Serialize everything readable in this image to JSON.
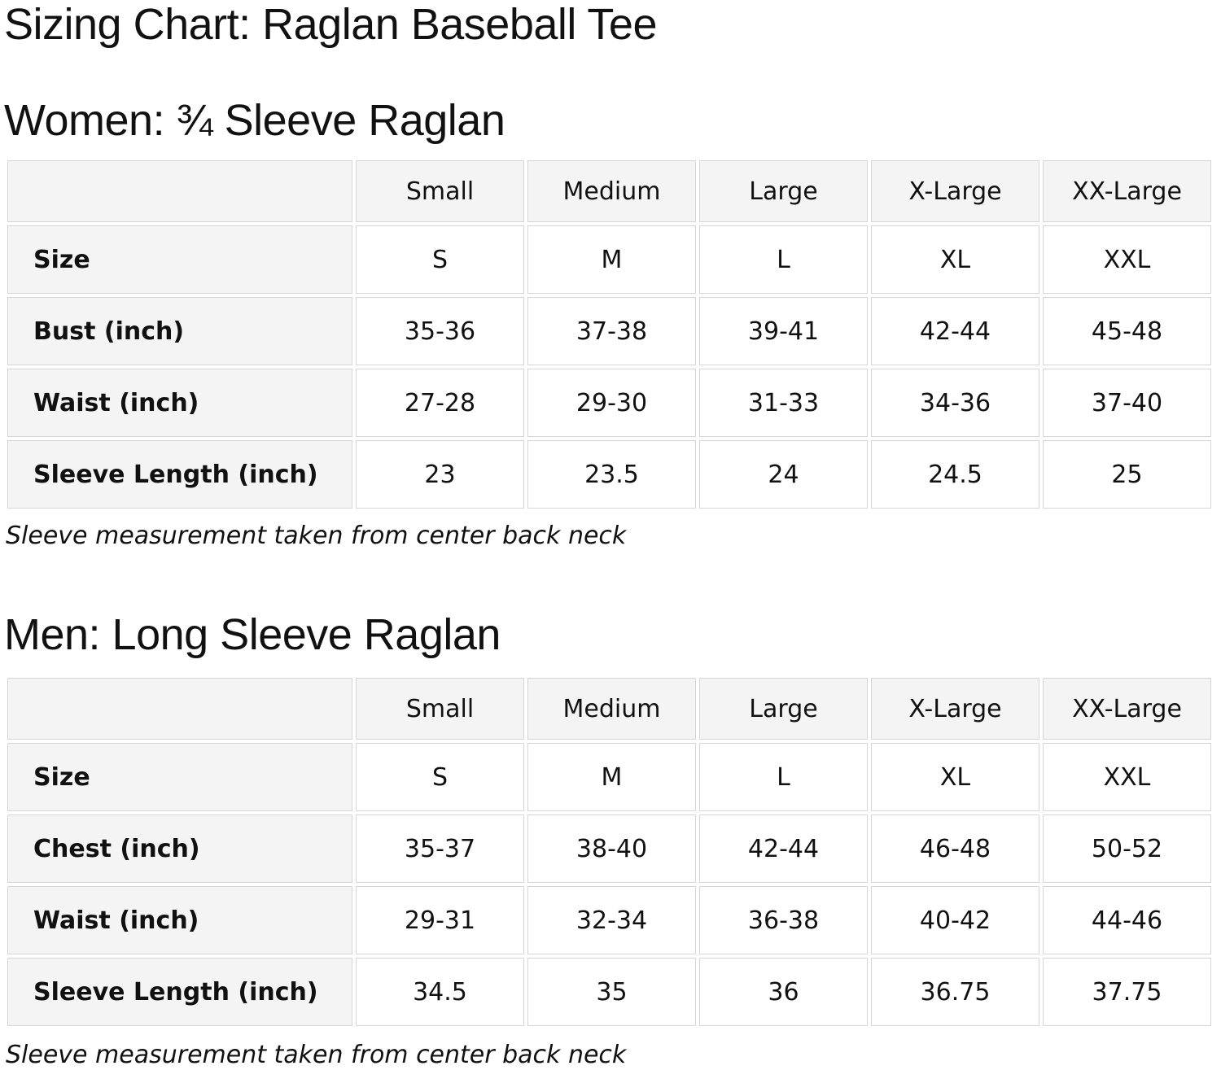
{
  "page": {
    "title": "Sizing Chart: Raglan Baseball Tee"
  },
  "colors": {
    "page_bg": "#ffffff",
    "header_cell_bg": "#f4f4f4",
    "value_cell_bg": "#ffffff",
    "cell_border": "#d6d6d6",
    "text": "#111111"
  },
  "sections": [
    {
      "heading": "Women: ¾ Sleeve Raglan",
      "note": "Sleeve measurement taken from center back neck",
      "table": {
        "columns": [
          "",
          "Small",
          "Medium",
          "Large",
          "X-Large",
          "XX-Large"
        ],
        "rows": [
          {
            "label": "Size",
            "values": [
              "S",
              "M",
              "L",
              "XL",
              "XXL"
            ]
          },
          {
            "label": "Bust (inch)",
            "values": [
              "35-36",
              "37-38",
              "39-41",
              "42-44",
              "45-48"
            ]
          },
          {
            "label": "Waist (inch)",
            "values": [
              "27-28",
              "29-30",
              "31-33",
              "34-36",
              "37-40"
            ]
          },
          {
            "label": "Sleeve Length (inch)",
            "values": [
              "23",
              "23.5",
              "24",
              "24.5",
              "25"
            ]
          }
        ]
      }
    },
    {
      "heading": "Men: Long Sleeve Raglan",
      "note": "Sleeve measurement taken from center back neck",
      "table": {
        "columns": [
          "",
          "Small",
          "Medium",
          "Large",
          "X-Large",
          "XX-Large"
        ],
        "rows": [
          {
            "label": "Size",
            "values": [
              "S",
              "M",
              "L",
              "XL",
              "XXL"
            ]
          },
          {
            "label": "Chest (inch)",
            "values": [
              "35-37",
              "38-40",
              "42-44",
              "46-48",
              "50-52"
            ]
          },
          {
            "label": "Waist (inch)",
            "values": [
              "29-31",
              "32-34",
              "36-38",
              "40-42",
              "44-46"
            ]
          },
          {
            "label": "Sleeve Length (inch)",
            "values": [
              "34.5",
              "35",
              "36",
              "36.75",
              "37.75"
            ]
          }
        ]
      }
    }
  ]
}
